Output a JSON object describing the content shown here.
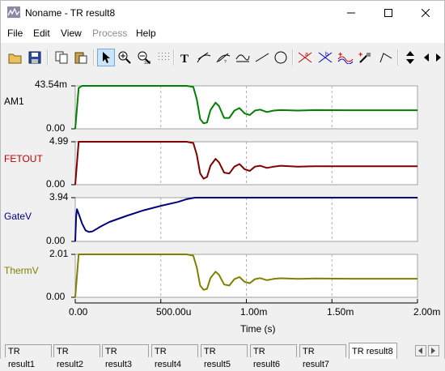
{
  "window": {
    "title": "Noname - TR result8"
  },
  "menu": [
    {
      "label": "File",
      "disabled": false
    },
    {
      "label": "Edit",
      "disabled": false
    },
    {
      "label": "View",
      "disabled": false
    },
    {
      "label": "Process",
      "disabled": true
    },
    {
      "label": "Help",
      "disabled": false
    }
  ],
  "toolbar": {
    "icons": [
      "open-folder-icon",
      "save-icon",
      "copy-icon",
      "paste-icon",
      "select-pointer-icon",
      "zoom-in-icon",
      "zoom-out-icon",
      "zoom-100-icon",
      "grid-icon",
      "text-tool-icon",
      "tangent-tool-icon",
      "slope-tool-icon",
      "level-tool-icon",
      "line-tool-icon",
      "ellipse-tool-icon",
      "cursor-a-icon",
      "cursor-b-icon",
      "curve-add-icon",
      "curve-remove-icon",
      "marker-icon",
      "polyline-icon",
      "move-updown-icon"
    ]
  },
  "chart_data": {
    "type": "line",
    "xlabel": "Time (s)",
    "x_ticks": [
      "0.00",
      "500.00u",
      "1.00m",
      "1.50m",
      "2.00m"
    ],
    "xlim": [
      0,
      0.002
    ],
    "panels": [
      {
        "name": "AM1",
        "ymax_label": "43.54m",
        "ymin_label": "0.00",
        "color": "#008000",
        "y_max": 0.04354,
        "points": [
          [
            0,
            0
          ],
          [
            2e-05,
            0.0413
          ],
          [
            3e-05,
            0.0425
          ],
          [
            4e-05,
            0.0435
          ],
          [
            0.00065,
            0.0435
          ],
          [
            0.00069,
            0.0425
          ],
          [
            0.00071,
            0.03
          ],
          [
            0.00073,
            0.01
          ],
          [
            0.00075,
            0.0055
          ],
          [
            0.00077,
            0.0065
          ],
          [
            0.00079,
            0.019
          ],
          [
            0.00082,
            0.0265
          ],
          [
            0.00084,
            0.023
          ],
          [
            0.00087,
            0.011
          ],
          [
            0.0009,
            0.011
          ],
          [
            0.00093,
            0.0185
          ],
          [
            0.00096,
            0.021
          ],
          [
            0.00099,
            0.0155
          ],
          [
            0.00102,
            0.014
          ],
          [
            0.00105,
            0.0185
          ],
          [
            0.00108,
            0.0195
          ],
          [
            0.00112,
            0.017
          ],
          [
            0.00116,
            0.0185
          ],
          [
            0.0012,
            0.019
          ],
          [
            0.0013,
            0.0185
          ],
          [
            0.0014,
            0.019
          ],
          [
            0.0016,
            0.0188
          ],
          [
            0.002,
            0.0188
          ]
        ]
      },
      {
        "name": "FETOUT",
        "ymax_label": "4.99",
        "ymin_label": "0.00",
        "color": "#800000",
        "y_max": 4.99,
        "points": [
          [
            0,
            0
          ],
          [
            2e-05,
            4.99
          ],
          [
            0.00065,
            4.99
          ],
          [
            0.00069,
            4.85
          ],
          [
            0.00071,
            3.5
          ],
          [
            0.00073,
            1.3
          ],
          [
            0.00075,
            0.7
          ],
          [
            0.00077,
            0.9
          ],
          [
            0.00079,
            2.2
          ],
          [
            0.00082,
            3.0
          ],
          [
            0.00084,
            2.6
          ],
          [
            0.00087,
            1.4
          ],
          [
            0.0009,
            1.3
          ],
          [
            0.00093,
            2.1
          ],
          [
            0.00096,
            2.4
          ],
          [
            0.00099,
            1.8
          ],
          [
            0.00102,
            1.6
          ],
          [
            0.00105,
            2.1
          ],
          [
            0.00108,
            2.2
          ],
          [
            0.00112,
            1.95
          ],
          [
            0.00116,
            2.1
          ],
          [
            0.0012,
            2.2
          ],
          [
            0.0013,
            2.1
          ],
          [
            0.0014,
            2.15
          ],
          [
            0.0016,
            2.15
          ],
          [
            0.002,
            2.15
          ]
        ]
      },
      {
        "name": "GateV",
        "ymax_label": "3.94",
        "ymin_label": "0.00",
        "color": "#000080",
        "y_max": 3.94,
        "points": [
          [
            0,
            0
          ],
          [
            5e-06,
            2.2
          ],
          [
            1e-05,
            2.9
          ],
          [
            2e-05,
            2.5
          ],
          [
            4e-05,
            1.6
          ],
          [
            6e-05,
            1.0
          ],
          [
            8e-05,
            0.85
          ],
          [
            0.0001,
            0.9
          ],
          [
            0.00015,
            1.35
          ],
          [
            0.0002,
            1.75
          ],
          [
            0.0003,
            2.3
          ],
          [
            0.0004,
            2.8
          ],
          [
            0.0005,
            3.2
          ],
          [
            0.0006,
            3.55
          ],
          [
            0.00065,
            3.8
          ],
          [
            0.0007,
            3.94
          ],
          [
            0.0008,
            3.94
          ],
          [
            0.001,
            3.94
          ],
          [
            0.002,
            3.94
          ]
        ]
      },
      {
        "name": "ThermV",
        "ymax_label": "2.01",
        "ymin_label": "0.00",
        "color": "#808000",
        "y_max": 2.01,
        "points": [
          [
            0,
            0
          ],
          [
            2e-05,
            2.01
          ],
          [
            0.00065,
            2.01
          ],
          [
            0.00069,
            1.95
          ],
          [
            0.00071,
            1.4
          ],
          [
            0.00073,
            0.55
          ],
          [
            0.00075,
            0.35
          ],
          [
            0.00077,
            0.4
          ],
          [
            0.00079,
            0.9
          ],
          [
            0.00082,
            1.2
          ],
          [
            0.00084,
            1.05
          ],
          [
            0.00087,
            0.6
          ],
          [
            0.0009,
            0.55
          ],
          [
            0.00093,
            0.85
          ],
          [
            0.00096,
            0.95
          ],
          [
            0.00099,
            0.72
          ],
          [
            0.00102,
            0.66
          ],
          [
            0.00105,
            0.85
          ],
          [
            0.00108,
            0.9
          ],
          [
            0.00112,
            0.8
          ],
          [
            0.00116,
            0.86
          ],
          [
            0.0012,
            0.89
          ],
          [
            0.0013,
            0.86
          ],
          [
            0.0014,
            0.88
          ],
          [
            0.0016,
            0.87
          ],
          [
            0.002,
            0.87
          ]
        ]
      }
    ]
  },
  "tabs": [
    {
      "label": "TR result1",
      "selected": false
    },
    {
      "label": "TR result2",
      "selected": false
    },
    {
      "label": "TR result3",
      "selected": false
    },
    {
      "label": "TR result4",
      "selected": false
    },
    {
      "label": "TR result5",
      "selected": false
    },
    {
      "label": "TR result6",
      "selected": false
    },
    {
      "label": "TR result7",
      "selected": false
    },
    {
      "label": "TR result8",
      "selected": true
    }
  ]
}
